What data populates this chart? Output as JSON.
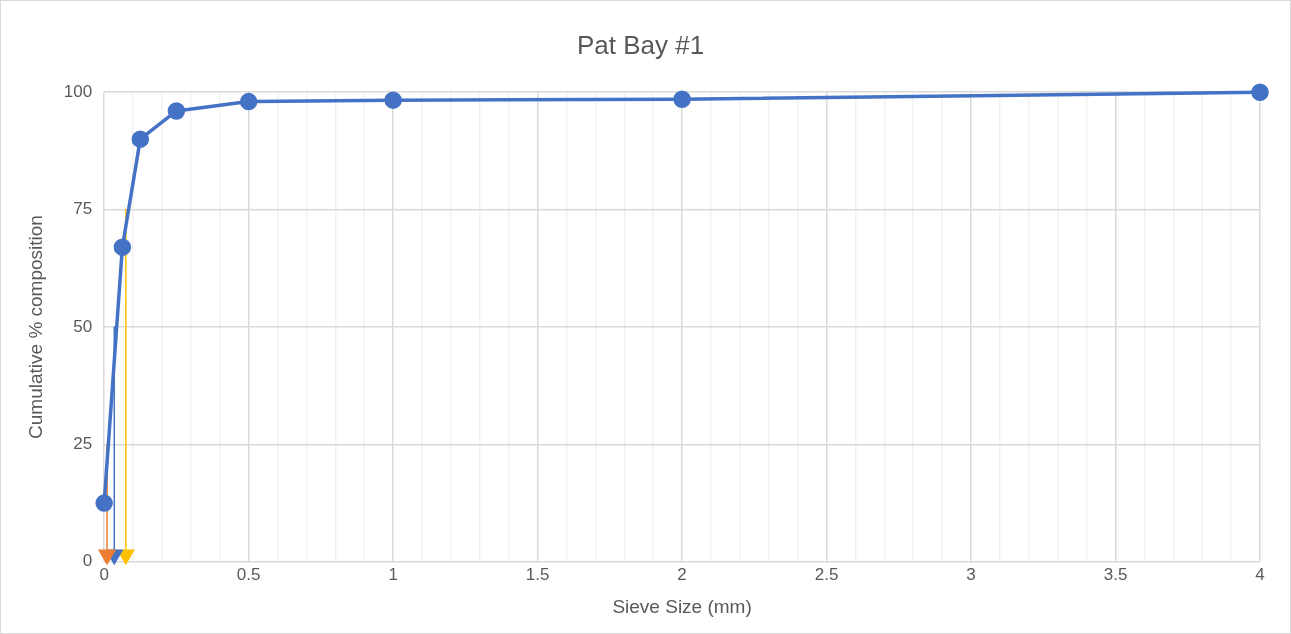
{
  "chart_data": {
    "type": "line",
    "title": "Pat Bay #1",
    "xlabel": "Sieve Size (mm)",
    "ylabel": "Cumulative % composition",
    "xlim": [
      0,
      4
    ],
    "ylim": [
      0,
      100
    ],
    "xticks": [
      0,
      {
        "value": 0.1,
        "label": null
      },
      {
        "value": 0.2,
        "label": null
      },
      {
        "value": 0.3,
        "label": null
      },
      {
        "value": 0.4,
        "label": null
      },
      0.5,
      {
        "value": 0.6,
        "label": null
      },
      {
        "value": 0.7,
        "label": null
      },
      {
        "value": 0.8,
        "label": null
      },
      {
        "value": 0.9,
        "label": null
      },
      1,
      {
        "value": 1.1,
        "label": null
      },
      {
        "value": 1.2,
        "label": null
      },
      {
        "value": 1.3,
        "label": null
      },
      {
        "value": 1.4,
        "label": null
      },
      1.5,
      {
        "value": 1.6,
        "label": null
      },
      {
        "value": 1.7,
        "label": null
      },
      {
        "value": 1.8,
        "label": null
      },
      {
        "value": 1.9,
        "label": null
      },
      2,
      {
        "value": 2.1,
        "label": null
      },
      {
        "value": 2.2,
        "label": null
      },
      {
        "value": 2.3,
        "label": null
      },
      {
        "value": 2.4,
        "label": null
      },
      2.5,
      {
        "value": 2.6,
        "label": null
      },
      {
        "value": 2.7,
        "label": null
      },
      {
        "value": 2.8,
        "label": null
      },
      {
        "value": 2.9,
        "label": null
      },
      3,
      {
        "value": 3.1,
        "label": null
      },
      {
        "value": 3.2,
        "label": null
      },
      {
        "value": 3.3,
        "label": null
      },
      {
        "value": 3.4,
        "label": null
      },
      3.5,
      {
        "value": 3.6,
        "label": null
      },
      {
        "value": 3.7,
        "label": null
      },
      {
        "value": 3.8,
        "label": null
      },
      {
        "value": 3.9,
        "label": null
      },
      4
    ],
    "yticks": [
      0,
      25,
      50,
      75,
      100
    ],
    "grid": true,
    "legend": false,
    "series": [
      {
        "color": "#4472c4",
        "marker": "circle",
        "x": [
          0,
          0.063,
          0.125,
          0.25,
          0.5,
          1,
          2,
          4
        ],
        "values": [
          12.5,
          67,
          90,
          96,
          98,
          98.3,
          98.5,
          100
        ]
      },
      {
        "color": "#ed7d31",
        "marker": "triangle",
        "x": [
          0.01,
          0.01
        ],
        "values": [
          25,
          1.5
        ]
      },
      {
        "color": "#4472c4",
        "marker": "triangle",
        "x": [
          0.035,
          0.035
        ],
        "values": [
          50,
          1.5
        ]
      },
      {
        "color": "#ffc000",
        "marker": "triangle",
        "x": [
          0.075,
          0.075
        ],
        "values": [
          75,
          1.5
        ]
      }
    ]
  }
}
